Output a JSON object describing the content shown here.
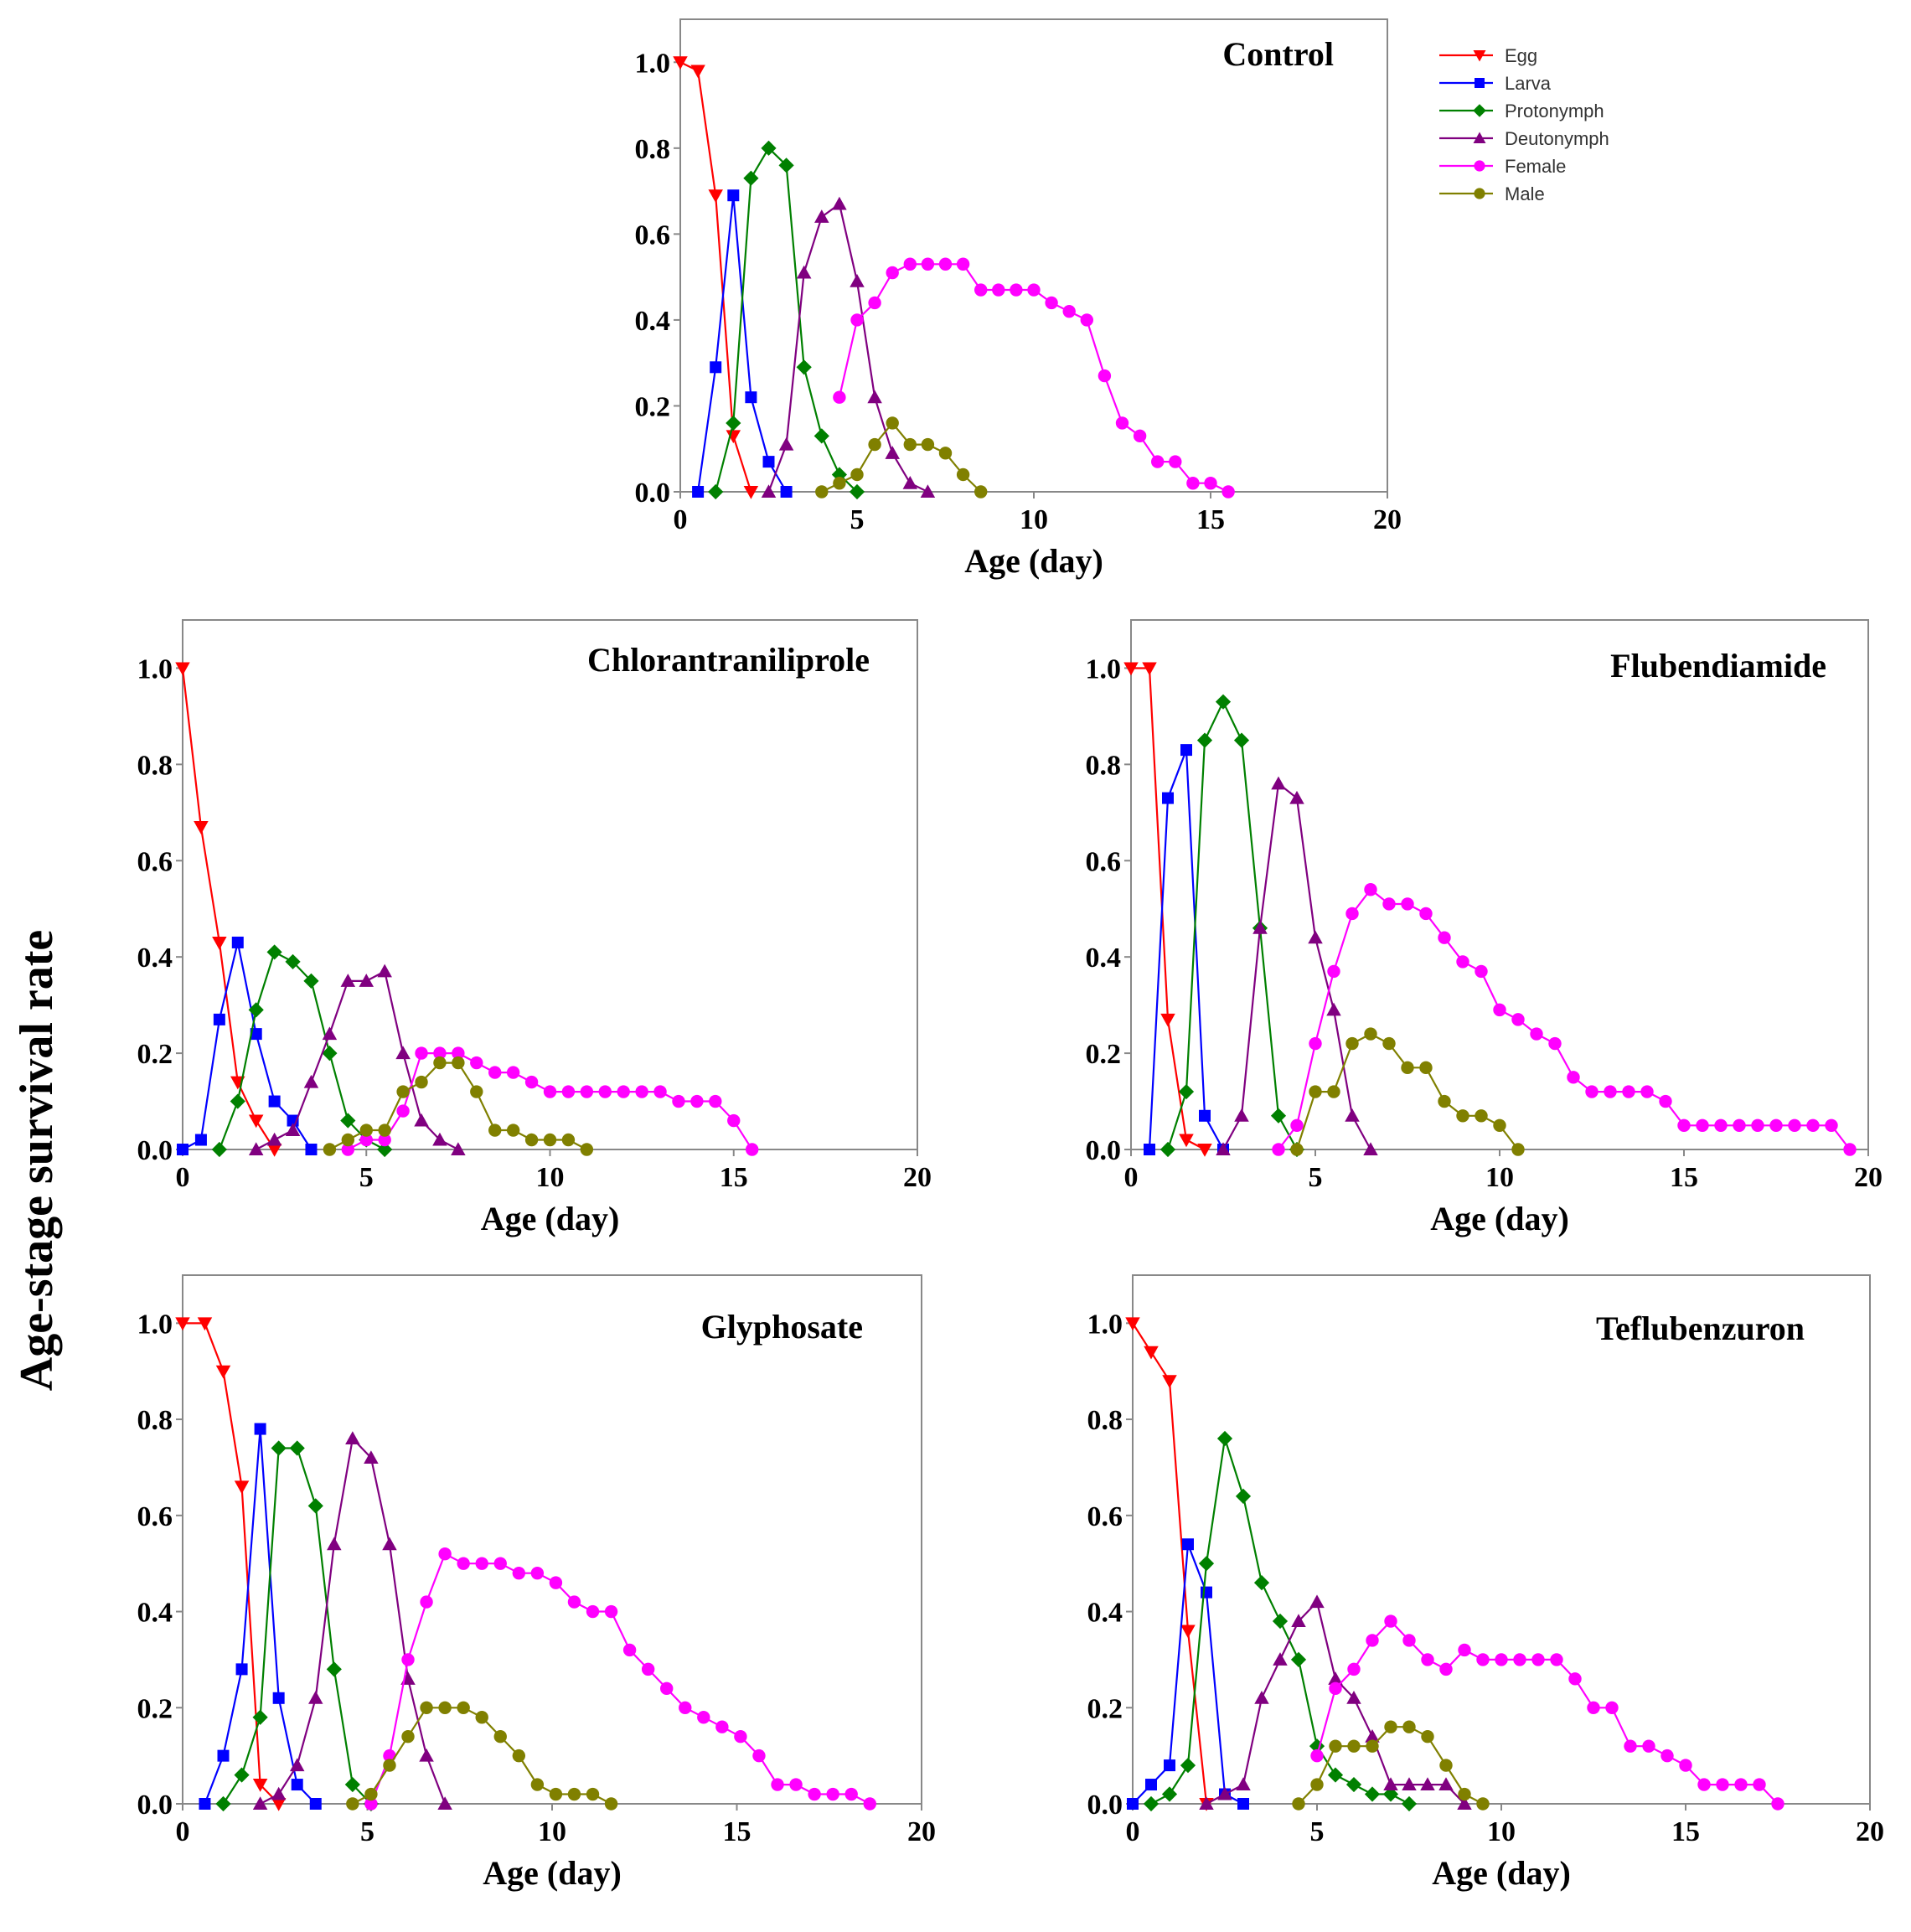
{
  "figure": {
    "y_label": "Age-stage survival rate"
  },
  "legend": {
    "items": [
      {
        "name": "Egg",
        "color": "#ff0000",
        "marker": "triangle-down"
      },
      {
        "name": "Larva",
        "color": "#0000ff",
        "marker": "square"
      },
      {
        "name": "Protonymph",
        "color": "#008000",
        "marker": "diamond"
      },
      {
        "name": "Deutonymph",
        "color": "#800080",
        "marker": "triangle-up"
      },
      {
        "name": "Female",
        "color": "#ff00ff",
        "marker": "circle"
      },
      {
        "name": "Male",
        "color": "#808000",
        "marker": "circle"
      }
    ]
  },
  "chart_data": [
    {
      "type": "line",
      "title": "Control",
      "xlabel": "Age (day)",
      "ylabel": "Age-stage survival rate",
      "xlim": [
        0,
        20
      ],
      "ylim": [
        0,
        1.1
      ],
      "xticks": [
        "0",
        "5",
        "10",
        "15",
        "20"
      ],
      "yticks": [
        "0.0",
        "0.2",
        "0.4",
        "0.6",
        "0.8",
        "1.0"
      ],
      "series": [
        {
          "name": "Egg",
          "x": [
            0,
            0.5,
            1,
            1.5,
            2
          ],
          "y": [
            1.0,
            0.98,
            0.69,
            0.13,
            0
          ]
        },
        {
          "name": "Larva",
          "x": [
            0.5,
            1,
            1.5,
            2,
            2.5,
            3
          ],
          "y": [
            0,
            0.29,
            0.69,
            0.22,
            0.07,
            0
          ]
        },
        {
          "name": "Protonymph",
          "x": [
            1,
            1.5,
            2,
            2.5,
            3,
            3.5,
            4,
            4.5,
            5
          ],
          "y": [
            0,
            0.16,
            0.73,
            0.8,
            0.76,
            0.29,
            0.13,
            0.04,
            0
          ]
        },
        {
          "name": "Deutonymph",
          "x": [
            2.5,
            3,
            3.5,
            4,
            4.5,
            5,
            5.5,
            6,
            6.5,
            7
          ],
          "y": [
            0,
            0.11,
            0.51,
            0.64,
            0.67,
            0.49,
            0.22,
            0.09,
            0.02,
            0
          ]
        },
        {
          "name": "Female",
          "x": [
            4.5,
            5,
            5.5,
            6,
            6.5,
            7,
            7.5,
            8,
            8.5,
            9,
            9.5,
            10,
            10.5,
            11,
            11.5,
            12,
            12.5,
            13,
            13.5,
            14,
            14.5,
            15,
            15.5
          ],
          "y": [
            0.22,
            0.4,
            0.44,
            0.51,
            0.53,
            0.53,
            0.53,
            0.53,
            0.47,
            0.47,
            0.47,
            0.47,
            0.44,
            0.42,
            0.4,
            0.27,
            0.16,
            0.13,
            0.07,
            0.07,
            0.02,
            0.02,
            0
          ]
        },
        {
          "name": "Male",
          "x": [
            4,
            4.5,
            5,
            5.5,
            6,
            6.5,
            7,
            7.5,
            8,
            8.5
          ],
          "y": [
            0,
            0.02,
            0.04,
            0.11,
            0.16,
            0.11,
            0.11,
            0.09,
            0.04,
            0
          ]
        }
      ]
    },
    {
      "type": "line",
      "title": "Chlorantraniliprole",
      "xlabel": "Age (day)",
      "ylabel": "Age-stage survival rate",
      "xlim": [
        0,
        20
      ],
      "ylim": [
        0,
        1.1
      ],
      "xticks": [
        "0",
        "5",
        "10",
        "15",
        "20"
      ],
      "yticks": [
        "0.0",
        "0.2",
        "0.4",
        "0.6",
        "0.8",
        "1.0"
      ],
      "series": [
        {
          "name": "Egg",
          "x": [
            0,
            0.5,
            1,
            1.5,
            2,
            2.5
          ],
          "y": [
            1.0,
            0.67,
            0.43,
            0.14,
            0.06,
            0
          ]
        },
        {
          "name": "Larva",
          "x": [
            0,
            0.5,
            1,
            1.5,
            2,
            2.5,
            3,
            3.5
          ],
          "y": [
            0,
            0.02,
            0.27,
            0.43,
            0.24,
            0.1,
            0.06,
            0
          ]
        },
        {
          "name": "Protonymph",
          "x": [
            1,
            1.5,
            2,
            2.5,
            3,
            3.5,
            4,
            4.5,
            5,
            5.5
          ],
          "y": [
            0,
            0.1,
            0.29,
            0.41,
            0.39,
            0.35,
            0.2,
            0.06,
            0.02,
            0
          ]
        },
        {
          "name": "Deutonymph",
          "x": [
            2,
            2.5,
            3,
            3.5,
            4,
            4.5,
            5,
            5.5,
            6,
            6.5,
            7,
            7.5
          ],
          "y": [
            0,
            0.02,
            0.04,
            0.14,
            0.24,
            0.35,
            0.35,
            0.37,
            0.2,
            0.06,
            0.02,
            0
          ]
        },
        {
          "name": "Female",
          "x": [
            4.5,
            5,
            5.5,
            6,
            6.5,
            7,
            7.5,
            8,
            8.5,
            9,
            9.5,
            10,
            10.5,
            11,
            11.5,
            12,
            12.5,
            13,
            13.5,
            14,
            14.5,
            15,
            15.5
          ],
          "y": [
            0,
            0.02,
            0.02,
            0.08,
            0.2,
            0.2,
            0.2,
            0.18,
            0.16,
            0.16,
            0.14,
            0.12,
            0.12,
            0.12,
            0.12,
            0.12,
            0.12,
            0.12,
            0.1,
            0.1,
            0.1,
            0.06,
            0
          ]
        },
        {
          "name": "Male",
          "x": [
            4,
            4.5,
            5,
            5.5,
            6,
            6.5,
            7,
            7.5,
            8,
            8.5,
            9,
            9.5,
            10,
            10.5,
            11
          ],
          "y": [
            0,
            0.02,
            0.04,
            0.04,
            0.12,
            0.14,
            0.18,
            0.18,
            0.12,
            0.04,
            0.04,
            0.02,
            0.02,
            0.02,
            0
          ]
        }
      ]
    },
    {
      "type": "line",
      "title": "Flubendiamide",
      "xlabel": "Age (day)",
      "ylabel": "Age-stage survival rate",
      "xlim": [
        0,
        20
      ],
      "ylim": [
        0,
        1.1
      ],
      "xticks": [
        "0",
        "5",
        "10",
        "15",
        "20"
      ],
      "yticks": [
        "0.0",
        "0.2",
        "0.4",
        "0.6",
        "0.8",
        "1.0"
      ],
      "series": [
        {
          "name": "Egg",
          "x": [
            0,
            0.5,
            1,
            1.5,
            2
          ],
          "y": [
            1.0,
            1.0,
            0.27,
            0.02,
            0
          ]
        },
        {
          "name": "Larva",
          "x": [
            0.5,
            1,
            1.5,
            2,
            2.5
          ],
          "y": [
            0,
            0.73,
            0.83,
            0.07,
            0
          ]
        },
        {
          "name": "Protonymph",
          "x": [
            1,
            1.5,
            2,
            2.5,
            3,
            3.5,
            4,
            4.5
          ],
          "y": [
            0,
            0.12,
            0.85,
            0.93,
            0.85,
            0.46,
            0.07,
            0
          ]
        },
        {
          "name": "Deutonymph",
          "x": [
            2.5,
            3,
            3.5,
            4,
            4.5,
            5,
            5.5,
            6,
            6.5
          ],
          "y": [
            0,
            0.07,
            0.46,
            0.76,
            0.73,
            0.44,
            0.29,
            0.07,
            0
          ]
        },
        {
          "name": "Female",
          "x": [
            4,
            4.5,
            5,
            5.5,
            6,
            6.5,
            7,
            7.5,
            8,
            8.5,
            9,
            9.5,
            10,
            10.5,
            11,
            11.5,
            12,
            12.5,
            13,
            13.5,
            14,
            14.5,
            15,
            15.5,
            16,
            16.5,
            17,
            17.5,
            18,
            18.5,
            19,
            19.5
          ],
          "y": [
            0,
            0.05,
            0.22,
            0.37,
            0.49,
            0.54,
            0.51,
            0.51,
            0.49,
            0.44,
            0.39,
            0.37,
            0.29,
            0.27,
            0.24,
            0.22,
            0.15,
            0.12,
            0.12,
            0.12,
            0.12,
            0.1,
            0.05,
            0.05,
            0.05,
            0.05,
            0.05,
            0.05,
            0.05,
            0.05,
            0.05,
            0
          ]
        },
        {
          "name": "Male",
          "x": [
            4.5,
            5,
            5.5,
            6,
            6.5,
            7,
            7.5,
            8,
            8.5,
            9,
            9.5,
            10,
            10.5
          ],
          "y": [
            0,
            0.12,
            0.12,
            0.22,
            0.24,
            0.22,
            0.17,
            0.17,
            0.1,
            0.07,
            0.07,
            0.05,
            0
          ]
        }
      ]
    },
    {
      "type": "line",
      "title": "Glyphosate",
      "xlabel": "Age (day)",
      "ylabel": "Age-stage survival rate",
      "xlim": [
        0,
        20
      ],
      "ylim": [
        0,
        1.1
      ],
      "xticks": [
        "0",
        "5",
        "10",
        "15",
        "20"
      ],
      "yticks": [
        "0.0",
        "0.2",
        "0.4",
        "0.6",
        "0.8",
        "1.0"
      ],
      "series": [
        {
          "name": "Egg",
          "x": [
            0,
            0.6,
            1.1,
            1.6,
            2.1,
            2.6
          ],
          "y": [
            1.0,
            1.0,
            0.9,
            0.66,
            0.04,
            0
          ]
        },
        {
          "name": "Larva",
          "x": [
            0.6,
            1.1,
            1.6,
            2.1,
            2.6,
            3.1,
            3.6
          ],
          "y": [
            0,
            0.1,
            0.28,
            0.78,
            0.22,
            0.04,
            0
          ]
        },
        {
          "name": "Protonymph",
          "x": [
            1.1,
            1.6,
            2.1,
            2.6,
            3.1,
            3.6,
            4.1,
            4.6,
            5.1
          ],
          "y": [
            0,
            0.06,
            0.18,
            0.74,
            0.74,
            0.62,
            0.28,
            0.04,
            0
          ]
        },
        {
          "name": "Deutonymph",
          "x": [
            2.1,
            2.6,
            3.1,
            3.6,
            4.1,
            4.6,
            5.1,
            5.6,
            6.1,
            6.6,
            7.1
          ],
          "y": [
            0,
            0.02,
            0.08,
            0.22,
            0.54,
            0.76,
            0.72,
            0.54,
            0.26,
            0.1,
            0
          ]
        },
        {
          "name": "Female",
          "x": [
            5.1,
            5.6,
            6.1,
            6.6,
            7.1,
            7.6,
            8.1,
            8.6,
            9.1,
            9.6,
            10.1,
            10.6,
            11.1,
            11.6,
            12.1,
            12.6,
            13.1,
            13.6,
            14.1,
            14.6,
            15.1,
            15.6,
            16.1,
            16.6,
            17.1,
            17.6,
            18.1,
            18.6
          ],
          "y": [
            0,
            0.1,
            0.3,
            0.42,
            0.52,
            0.5,
            0.5,
            0.5,
            0.48,
            0.48,
            0.46,
            0.42,
            0.4,
            0.4,
            0.32,
            0.28,
            0.24,
            0.2,
            0.18,
            0.16,
            0.14,
            0.1,
            0.04,
            0.04,
            0.02,
            0.02,
            0.02,
            0
          ]
        },
        {
          "name": "Male",
          "x": [
            4.6,
            5.1,
            5.6,
            6.1,
            6.6,
            7.1,
            7.6,
            8.1,
            8.6,
            9.1,
            9.6,
            10.1,
            10.6,
            11.1,
            11.6
          ],
          "y": [
            0,
            0.02,
            0.08,
            0.14,
            0.2,
            0.2,
            0.2,
            0.18,
            0.14,
            0.1,
            0.04,
            0.02,
            0.02,
            0.02,
            0
          ]
        }
      ]
    },
    {
      "type": "line",
      "title": "Teflubenzuron",
      "xlabel": "Age (day)",
      "ylabel": "Age-stage survival rate",
      "xlim": [
        0,
        20
      ],
      "ylim": [
        0,
        1.1
      ],
      "xticks": [
        "0",
        "5",
        "10",
        "15",
        "20"
      ],
      "yticks": [
        "0.0",
        "0.2",
        "0.4",
        "0.6",
        "0.8",
        "1.0"
      ],
      "series": [
        {
          "name": "Egg",
          "x": [
            0,
            0.5,
            1,
            1.5,
            2
          ],
          "y": [
            1.0,
            0.94,
            0.88,
            0.36,
            0
          ]
        },
        {
          "name": "Larva",
          "x": [
            0,
            0.5,
            1,
            1.5,
            2,
            2.5,
            3
          ],
          "y": [
            0,
            0.04,
            0.08,
            0.54,
            0.44,
            0.02,
            0
          ]
        },
        {
          "name": "Protonymph",
          "x": [
            0.5,
            1,
            1.5,
            2,
            2.5,
            3,
            3.5,
            4,
            4.5,
            5,
            5.5,
            6,
            6.5,
            7,
            7.5
          ],
          "y": [
            0,
            0.02,
            0.08,
            0.5,
            0.76,
            0.64,
            0.46,
            0.38,
            0.3,
            0.12,
            0.06,
            0.04,
            0.02,
            0.02,
            0
          ]
        },
        {
          "name": "Deutonymph",
          "x": [
            2,
            2.5,
            3,
            3.5,
            4,
            4.5,
            5,
            5.5,
            6,
            6.5,
            7,
            7.5,
            8,
            8.5,
            9
          ],
          "y": [
            0,
            0.02,
            0.04,
            0.22,
            0.3,
            0.38,
            0.42,
            0.26,
            0.22,
            0.14,
            0.04,
            0.04,
            0.04,
            0.04,
            0
          ]
        },
        {
          "name": "Female",
          "x": [
            5,
            5.5,
            6,
            6.5,
            7,
            7.5,
            8,
            8.5,
            9,
            9.5,
            10,
            10.5,
            11,
            11.5,
            12,
            12.5,
            13,
            13.5,
            14,
            14.5,
            15,
            15.5,
            16,
            16.5,
            17,
            17.5
          ],
          "y": [
            0.1,
            0.24,
            0.28,
            0.34,
            0.38,
            0.34,
            0.3,
            0.28,
            0.32,
            0.3,
            0.3,
            0.3,
            0.3,
            0.3,
            0.26,
            0.2,
            0.2,
            0.12,
            0.12,
            0.1,
            0.08,
            0.04,
            0.04,
            0.04,
            0.04,
            0
          ]
        },
        {
          "name": "Male",
          "x": [
            4.5,
            5,
            5.5,
            6,
            6.5,
            7,
            7.5,
            8,
            8.5,
            9,
            9.5
          ],
          "y": [
            0,
            0.04,
            0.12,
            0.12,
            0.12,
            0.16,
            0.16,
            0.14,
            0.08,
            0.02,
            0
          ]
        }
      ]
    }
  ]
}
